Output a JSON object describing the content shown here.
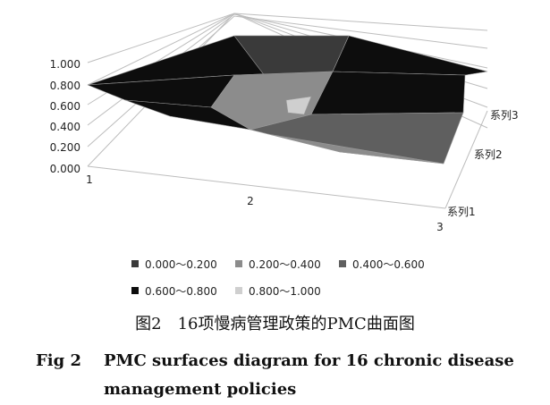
{
  "chart_data": {
    "type": "surface",
    "z_ticks": [
      "0.000",
      "0.200",
      "0.400",
      "0.600",
      "0.800",
      "1.000"
    ],
    "x_ticks": [
      "1",
      "2",
      "3"
    ],
    "y_ticks": [
      "系列1",
      "系列2",
      "系列3"
    ],
    "zlim": [
      0,
      1
    ],
    "legend_position": "bottom",
    "legend": [
      {
        "label": "0.000～0.200",
        "color": "#3a3a3a"
      },
      {
        "label": "0.200～0.400",
        "color": "#8c8c8c"
      },
      {
        "label": "0.400～0.600",
        "color": "#5f5f5f"
      },
      {
        "label": "0.600～0.800",
        "color": "#0d0d0d"
      },
      {
        "label": "0.800～1.000",
        "color": "#cfcfcf"
      }
    ]
  },
  "caption": {
    "cn": "图2　16项慢病管理政策的PMC曲面图",
    "en_label": "Fig 2",
    "en_line1": "PMC surfaces diagram for 16 chronic disease",
    "en_line2": "management policies"
  }
}
